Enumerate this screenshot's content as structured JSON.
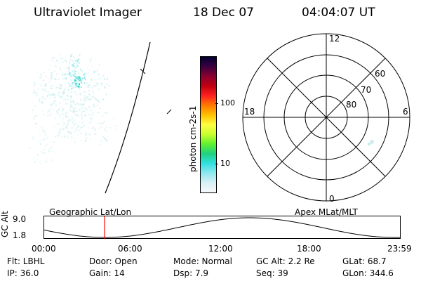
{
  "header": {
    "title": "Ultraviolet Imager",
    "date": "18 Dec 07",
    "time": "04:04:07 UT"
  },
  "colorbar": {
    "label": "photon cm-2s-1",
    "ticks": [
      "100",
      "10"
    ],
    "colors": [
      "#000030",
      "#3a0040",
      "#8a0030",
      "#c00010",
      "#ff2020",
      "#ff7a00",
      "#ffc000",
      "#ffff40",
      "#c8ff30",
      "#60f030",
      "#20d080",
      "#30e0e0",
      "#90e8f0",
      "#d8f0f4",
      "#f6f8fa"
    ]
  },
  "polar_grid": {
    "mlt_labels": {
      "top": "12",
      "bottom": "0",
      "left": "18",
      "right": "6"
    },
    "lat_labels": [
      "60",
      "70",
      "80"
    ]
  },
  "altitude_plot": {
    "y_label": "GC Alt",
    "y_ticks": [
      "9.0",
      "1.8"
    ],
    "left_caption": "Geographic Lat/Lon",
    "right_caption": "Apex  MLat/MLT",
    "x_ticks": [
      "00:00",
      "06:00",
      "12:00",
      "18:00",
      "23:59"
    ],
    "current_time_marker_hours": 4.07,
    "marker_color": "#ff0000"
  },
  "info_rows": [
    [
      "Flt: LBHL",
      "Door: Open",
      "Mode: Normal",
      "GC Alt: 2.2 Re",
      "GLat:  68.7"
    ],
    [
      "IP: 36.0",
      "Gain: 14",
      "Dsp:     7.9",
      "Seq: 39",
      "GLon: 344.6"
    ]
  ],
  "aurora_colors": {
    "faint": "#a8e0e0",
    "mid": "#60e0e8",
    "bright": "#20d0c0"
  }
}
